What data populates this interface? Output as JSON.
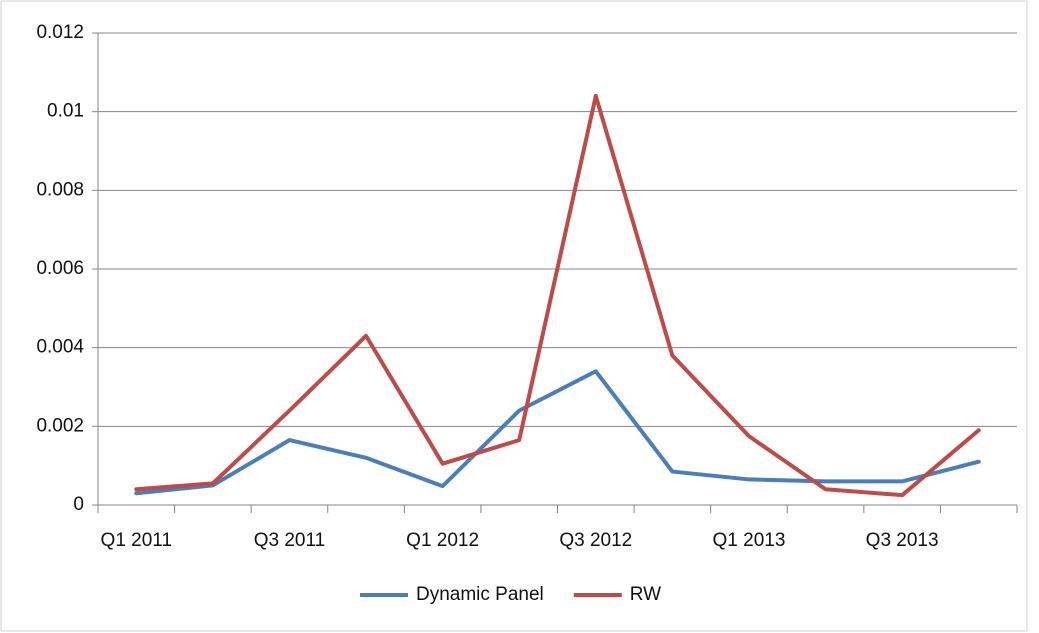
{
  "chart_data": {
    "type": "line",
    "categories": [
      "Q1 2011",
      null,
      "Q3 2011",
      null,
      "Q1 2012",
      null,
      "Q3 2012",
      null,
      "Q1 2013",
      null,
      "Q3 2013",
      null
    ],
    "series": [
      {
        "name": "Dynamic Panel",
        "color": "#4a7ebb",
        "values": [
          0.0003,
          0.0005,
          0.00165,
          0.0012,
          0.00048,
          0.0024,
          0.0034,
          0.00085,
          0.00065,
          0.0006,
          0.0006,
          0.0011
        ]
      },
      {
        "name": "RW",
        "color": "#be4b48",
        "values": [
          0.0004,
          0.00055,
          0.0024,
          0.0043,
          0.00105,
          0.00165,
          0.0104,
          0.0038,
          0.00175,
          0.0004,
          0.00025,
          0.0019
        ]
      }
    ],
    "ylim": [
      0,
      0.012
    ],
    "yticks": [
      0,
      0.002,
      0.004,
      0.006,
      0.008,
      0.01,
      0.012
    ],
    "grid": true,
    "legend": "bottom"
  }
}
